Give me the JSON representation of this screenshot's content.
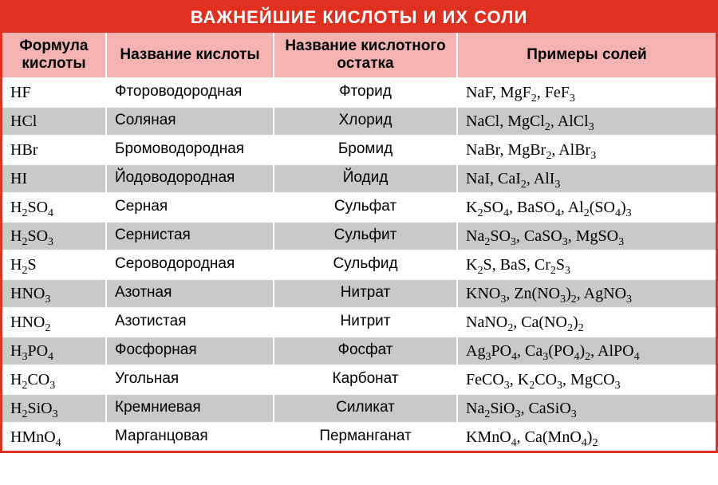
{
  "title": "ВАЖНЕЙШИЕ КИСЛОТЫ И ИХ СОЛИ",
  "headers": {
    "formula": "Формула кислоты",
    "name": "Название кислоты",
    "residue": "Название кислотного остатка",
    "salts": "Примеры солей"
  },
  "rows": [
    {
      "formula": "HF",
      "name": "Фтороводородная",
      "residue": "Фторид",
      "salts": "NaF, MgF₂, FeF₃"
    },
    {
      "formula": "HCl",
      "name": "Соляная",
      "residue": "Хлорид",
      "salts": "NaCl, MgCl₂, AlCl₃"
    },
    {
      "formula": "HBr",
      "name": "Бромоводородная",
      "residue": "Бромид",
      "salts": "NaBr, MgBr₂, AlBr₃"
    },
    {
      "formula": "HI",
      "name": "Йодоводородная",
      "residue": "Йодид",
      "salts": "NaI, CaI₂, AlI₃"
    },
    {
      "formula": "H₂SO₄",
      "name": "Серная",
      "residue": "Сульфат",
      "salts": "K₂SO₄, BaSO₄, Al₂(SO₄)₃"
    },
    {
      "formula": "H₂SO₃",
      "name": "Сернистая",
      "residue": "Сульфит",
      "salts": "Na₂SO₃, CaSO₃, MgSO₃"
    },
    {
      "formula": "H₂S",
      "name": "Сероводородная",
      "residue": "Сульфид",
      "salts": "K₂S, BaS, Cr₂S₃"
    },
    {
      "formula": "HNO₃",
      "name": "Азотная",
      "residue": "Нитрат",
      "salts": "KNO₃, Zn(NO₃)₂, AgNO₃"
    },
    {
      "formula": "HNO₂",
      "name": "Азотистая",
      "residue": "Нитрит",
      "salts": "NaNO₂, Ca(NO₂)₂"
    },
    {
      "formula": "H₃PO₄",
      "name": "Фосфорная",
      "residue": "Фосфат",
      "salts": "Ag₃PO₄, Ca₃(PO₄)₂, AlPO₄"
    },
    {
      "formula": "H₂CO₃",
      "name": "Угольная",
      "residue": "Карбонат",
      "salts": "FeCO₃, K₂CO₃, MgCO₃"
    },
    {
      "formula": "H₂SiO₃",
      "name": "Кремниевая",
      "residue": "Силикат",
      "salts": "Na₂SiO₃, CaSiO₃"
    },
    {
      "formula": "HMnO₄",
      "name": "Марганцовая",
      "residue": "Перманганат",
      "salts": "KMnO₄, Ca(MnO₄)₂"
    }
  ],
  "colors": {
    "border": "#e03020",
    "title_bg": "#e03020",
    "title_fg": "#ffffff",
    "header_bg": "#f4b3b0",
    "row_odd_bg": "#ffffff",
    "row_even_bg": "#c9c9c9"
  }
}
